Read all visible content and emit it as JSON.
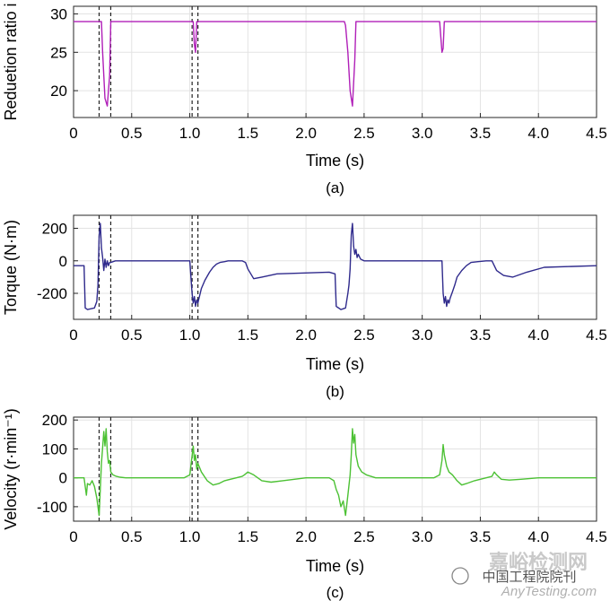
{
  "chart_data": [
    {
      "id": "a",
      "type": "line",
      "caption": "(a)",
      "xlabel": "Time (s)",
      "ylabel": "Reduetion ratio i",
      "xlim": [
        0,
        4.5
      ],
      "ylim": [
        16.5,
        31
      ],
      "xticks": [
        "0",
        "0.5",
        "1.0",
        "1.5",
        "2.0",
        "2.5",
        "3.0",
        "3.5",
        "4.0",
        "4.5"
      ],
      "yticks": [
        "20",
        "25",
        "30"
      ],
      "grid": true,
      "color": "#b01fb8",
      "vlines": [
        0.22,
        0.32,
        1.02,
        1.07
      ],
      "series": [
        {
          "name": "Reduction ratio",
          "x": [
            0,
            0.24,
            0.25,
            0.27,
            0.29,
            0.31,
            0.32,
            1.03,
            1.04,
            1.05,
            1.06,
            2.33,
            2.34,
            2.36,
            2.38,
            2.4,
            2.42,
            2.43,
            3.15,
            3.16,
            3.17,
            3.18,
            3.19,
            4.5
          ],
          "y": [
            29,
            29,
            25,
            19,
            18,
            22,
            29,
            29,
            26,
            25,
            29,
            29,
            28.5,
            25,
            20,
            18,
            24,
            29,
            29,
            27,
            25,
            25.5,
            29,
            29
          ]
        }
      ]
    },
    {
      "id": "b",
      "type": "line",
      "caption": "(b)",
      "xlabel": "Time (s)",
      "ylabel": "Torque (N·m)",
      "xlim": [
        0,
        4.5
      ],
      "ylim": [
        -360,
        280
      ],
      "xticks": [
        "0",
        "0.5",
        "1.0",
        "1.5",
        "2.0",
        "2.5",
        "3.0",
        "3.5",
        "4.0",
        "4.5"
      ],
      "yticks": [
        "-200",
        "0",
        "200"
      ],
      "grid": true,
      "color": "#2f2a8c",
      "vlines": [
        0.22,
        0.32,
        1.02,
        1.07
      ],
      "series": [
        {
          "name": "Torque",
          "x": [
            0,
            0.09,
            0.1,
            0.12,
            0.18,
            0.2,
            0.21,
            0.22,
            0.23,
            0.24,
            0.25,
            0.26,
            0.27,
            0.28,
            0.29,
            0.3,
            0.31,
            0.32,
            0.34,
            0.36,
            0.38,
            0.4,
            1.0,
            1.02,
            1.03,
            1.04,
            1.05,
            1.06,
            1.07,
            1.08,
            1.1,
            1.13,
            1.17,
            1.2,
            1.23,
            1.26,
            1.3,
            1.33,
            1.45,
            1.48,
            1.5,
            1.55,
            1.62,
            1.75,
            2.2,
            2.25,
            2.26,
            2.3,
            2.34,
            2.36,
            2.37,
            2.38,
            2.39,
            2.4,
            2.41,
            2.42,
            2.43,
            2.44,
            2.45,
            2.47,
            2.5,
            2.55,
            3.17,
            3.18,
            3.19,
            3.2,
            3.21,
            3.22,
            3.23,
            3.24,
            3.26,
            3.28,
            3.3,
            3.34,
            3.38,
            3.42,
            3.48,
            3.55,
            3.6,
            3.62,
            3.64,
            3.7,
            3.78,
            3.9,
            4.05,
            4.5
          ],
          "y": [
            -30,
            -30,
            -290,
            -300,
            -290,
            -250,
            -150,
            150,
            230,
            80,
            20,
            -60,
            10,
            -40,
            0,
            -30,
            -10,
            -10,
            -5,
            0,
            0,
            0,
            0,
            -200,
            -260,
            -220,
            -280,
            -240,
            -260,
            -230,
            -170,
            -120,
            -70,
            -40,
            -20,
            -10,
            -5,
            0,
            0,
            -10,
            -50,
            -110,
            -100,
            -80,
            -70,
            -80,
            -280,
            -300,
            -290,
            -200,
            -150,
            -50,
            160,
            230,
            90,
            40,
            70,
            20,
            40,
            10,
            0,
            0,
            0,
            -200,
            -260,
            -220,
            -280,
            -240,
            -260,
            -230,
            -190,
            -150,
            -100,
            -60,
            -30,
            -10,
            -5,
            0,
            0,
            -30,
            -60,
            -90,
            -100,
            -70,
            -40,
            -30
          ]
        }
      ]
    },
    {
      "id": "c",
      "type": "line",
      "caption": "(c)",
      "xlabel": "Time (s)",
      "ylabel": "Velocity (r·min⁻¹)",
      "xlim": [
        0,
        4.5
      ],
      "ylim": [
        -150,
        210
      ],
      "xticks": [
        "0",
        "0.5",
        "1.0",
        "1.5",
        "2.0",
        "2.5",
        "3.0",
        "3.5",
        "4.0",
        "4.5"
      ],
      "yticks": [
        "-100",
        "0",
        "100",
        "200"
      ],
      "grid": true,
      "color": "#4cc134",
      "vlines": [
        0.22,
        0.32,
        1.02,
        1.07
      ],
      "series": [
        {
          "name": "Velocity",
          "x": [
            0,
            0.09,
            0.11,
            0.12,
            0.14,
            0.16,
            0.18,
            0.2,
            0.22,
            0.24,
            0.26,
            0.27,
            0.28,
            0.29,
            0.3,
            0.31,
            0.32,
            0.34,
            0.37,
            0.4,
            0.45,
            0.55,
            0.95,
            1.0,
            1.03,
            1.04,
            1.05,
            1.06,
            1.07,
            1.1,
            1.15,
            1.2,
            1.25,
            1.3,
            1.4,
            1.45,
            1.47,
            1.5,
            1.55,
            1.62,
            1.7,
            1.8,
            1.9,
            2.0,
            2.1,
            2.2,
            2.24,
            2.26,
            2.28,
            2.3,
            2.32,
            2.34,
            2.36,
            2.38,
            2.39,
            2.4,
            2.41,
            2.42,
            2.43,
            2.45,
            2.48,
            2.52,
            2.6,
            3.1,
            3.15,
            3.17,
            3.18,
            3.19,
            3.2,
            3.21,
            3.23,
            3.26,
            3.3,
            3.34,
            3.38,
            3.45,
            3.55,
            3.6,
            3.62,
            3.64,
            3.68,
            3.75,
            3.85,
            4.0,
            4.5
          ],
          "y": [
            0,
            0,
            -60,
            -20,
            -25,
            -10,
            -30,
            -70,
            -130,
            50,
            160,
            110,
            170,
            90,
            50,
            60,
            20,
            10,
            5,
            2,
            0,
            0,
            0,
            10,
            110,
            60,
            80,
            30,
            50,
            20,
            -10,
            -25,
            -20,
            -10,
            0,
            5,
            10,
            20,
            10,
            -10,
            -15,
            -10,
            -5,
            0,
            0,
            0,
            -10,
            -40,
            -60,
            -100,
            -80,
            -130,
            -60,
            10,
            80,
            170,
            120,
            150,
            80,
            40,
            20,
            10,
            0,
            0,
            10,
            60,
            115,
            80,
            60,
            40,
            20,
            10,
            -10,
            -25,
            -20,
            -10,
            0,
            5,
            20,
            10,
            -5,
            -8,
            -5,
            0,
            0
          ]
        }
      ]
    }
  ],
  "watermark": {
    "account": "中国工程院院刊",
    "brand": "嘉峪检测网",
    "site": "AnyTesting.com"
  }
}
